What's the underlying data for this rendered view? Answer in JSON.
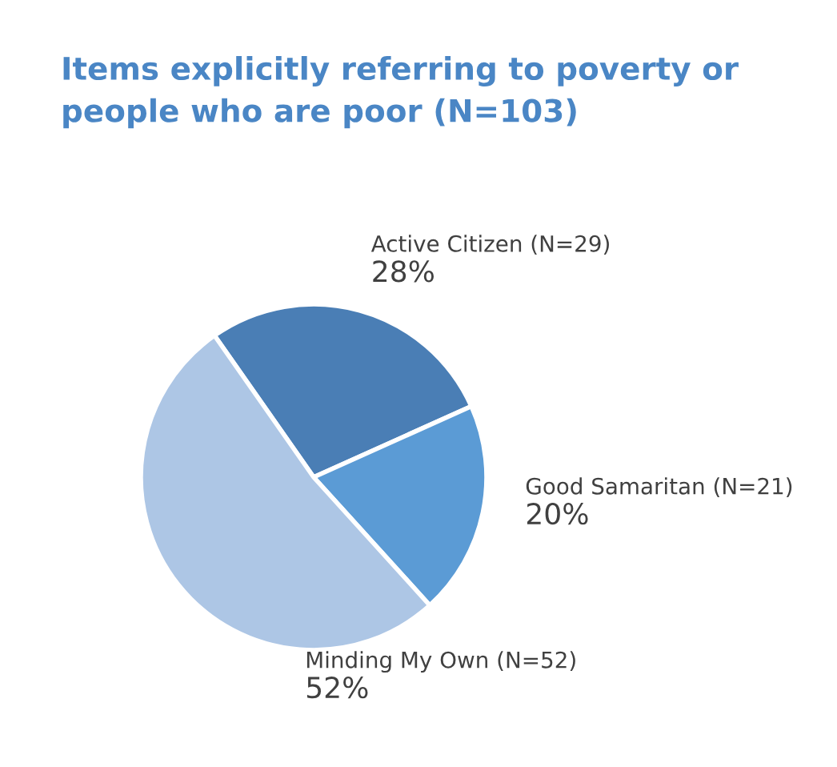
{
  "chart_data": {
    "type": "pie",
    "title": "Items explicitly referring to poverty or\npeople who are poor (N=103)",
    "categories": [
      "Active Citizen (N=29)",
      "Good Samaritan (N=21)",
      "Minding My Own (N=52)"
    ],
    "values": [
      28,
      20,
      52
    ],
    "value_labels": [
      "28%",
      "20%",
      "52%"
    ],
    "colors": [
      "#4a7eb5",
      "#5b9bd5",
      "#adc6e5"
    ]
  }
}
